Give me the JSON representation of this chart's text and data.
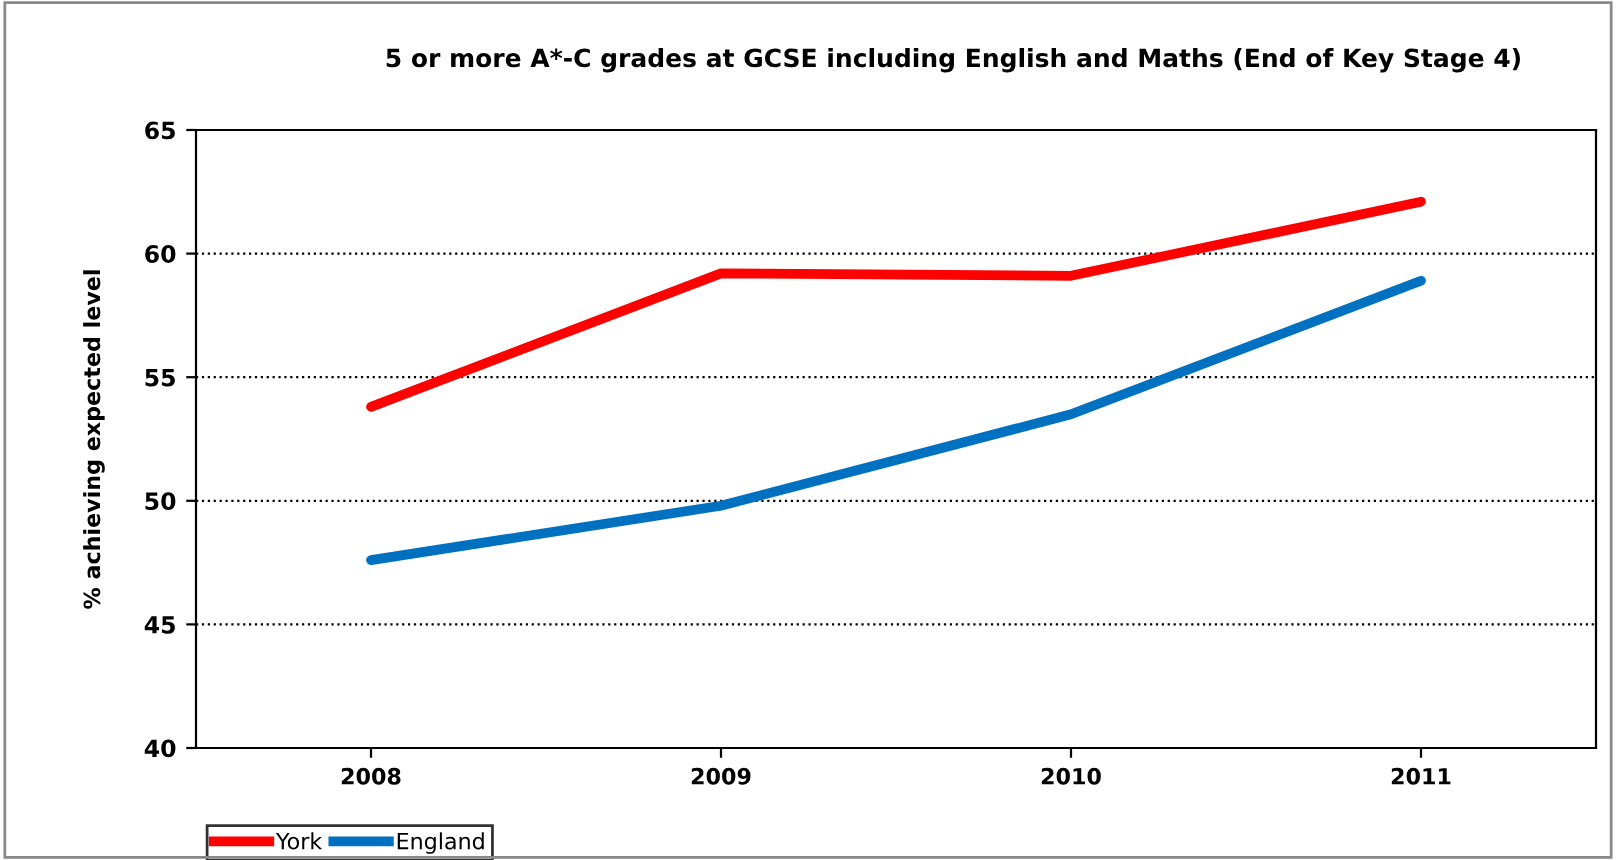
{
  "chart_data": {
    "type": "line",
    "title": "5 or more A*-C grades at GCSE including English and Maths (End of Key Stage 4)",
    "ylabel": "% achieving expected level",
    "categories": [
      "2008",
      "2009",
      "2010",
      "2011"
    ],
    "series": [
      {
        "name": "York",
        "color": "#ff0000",
        "values": [
          53.8,
          59.2,
          59.1,
          62.1
        ]
      },
      {
        "name": "England",
        "color": "#0070c0",
        "values": [
          47.6,
          49.8,
          53.5,
          58.9
        ]
      }
    ],
    "ylim": [
      40,
      65
    ],
    "yticks": [
      40,
      45,
      50,
      55,
      60,
      65
    ],
    "grid": "y",
    "legend": "bottom left",
    "line_style": "solid",
    "marker": "none"
  }
}
